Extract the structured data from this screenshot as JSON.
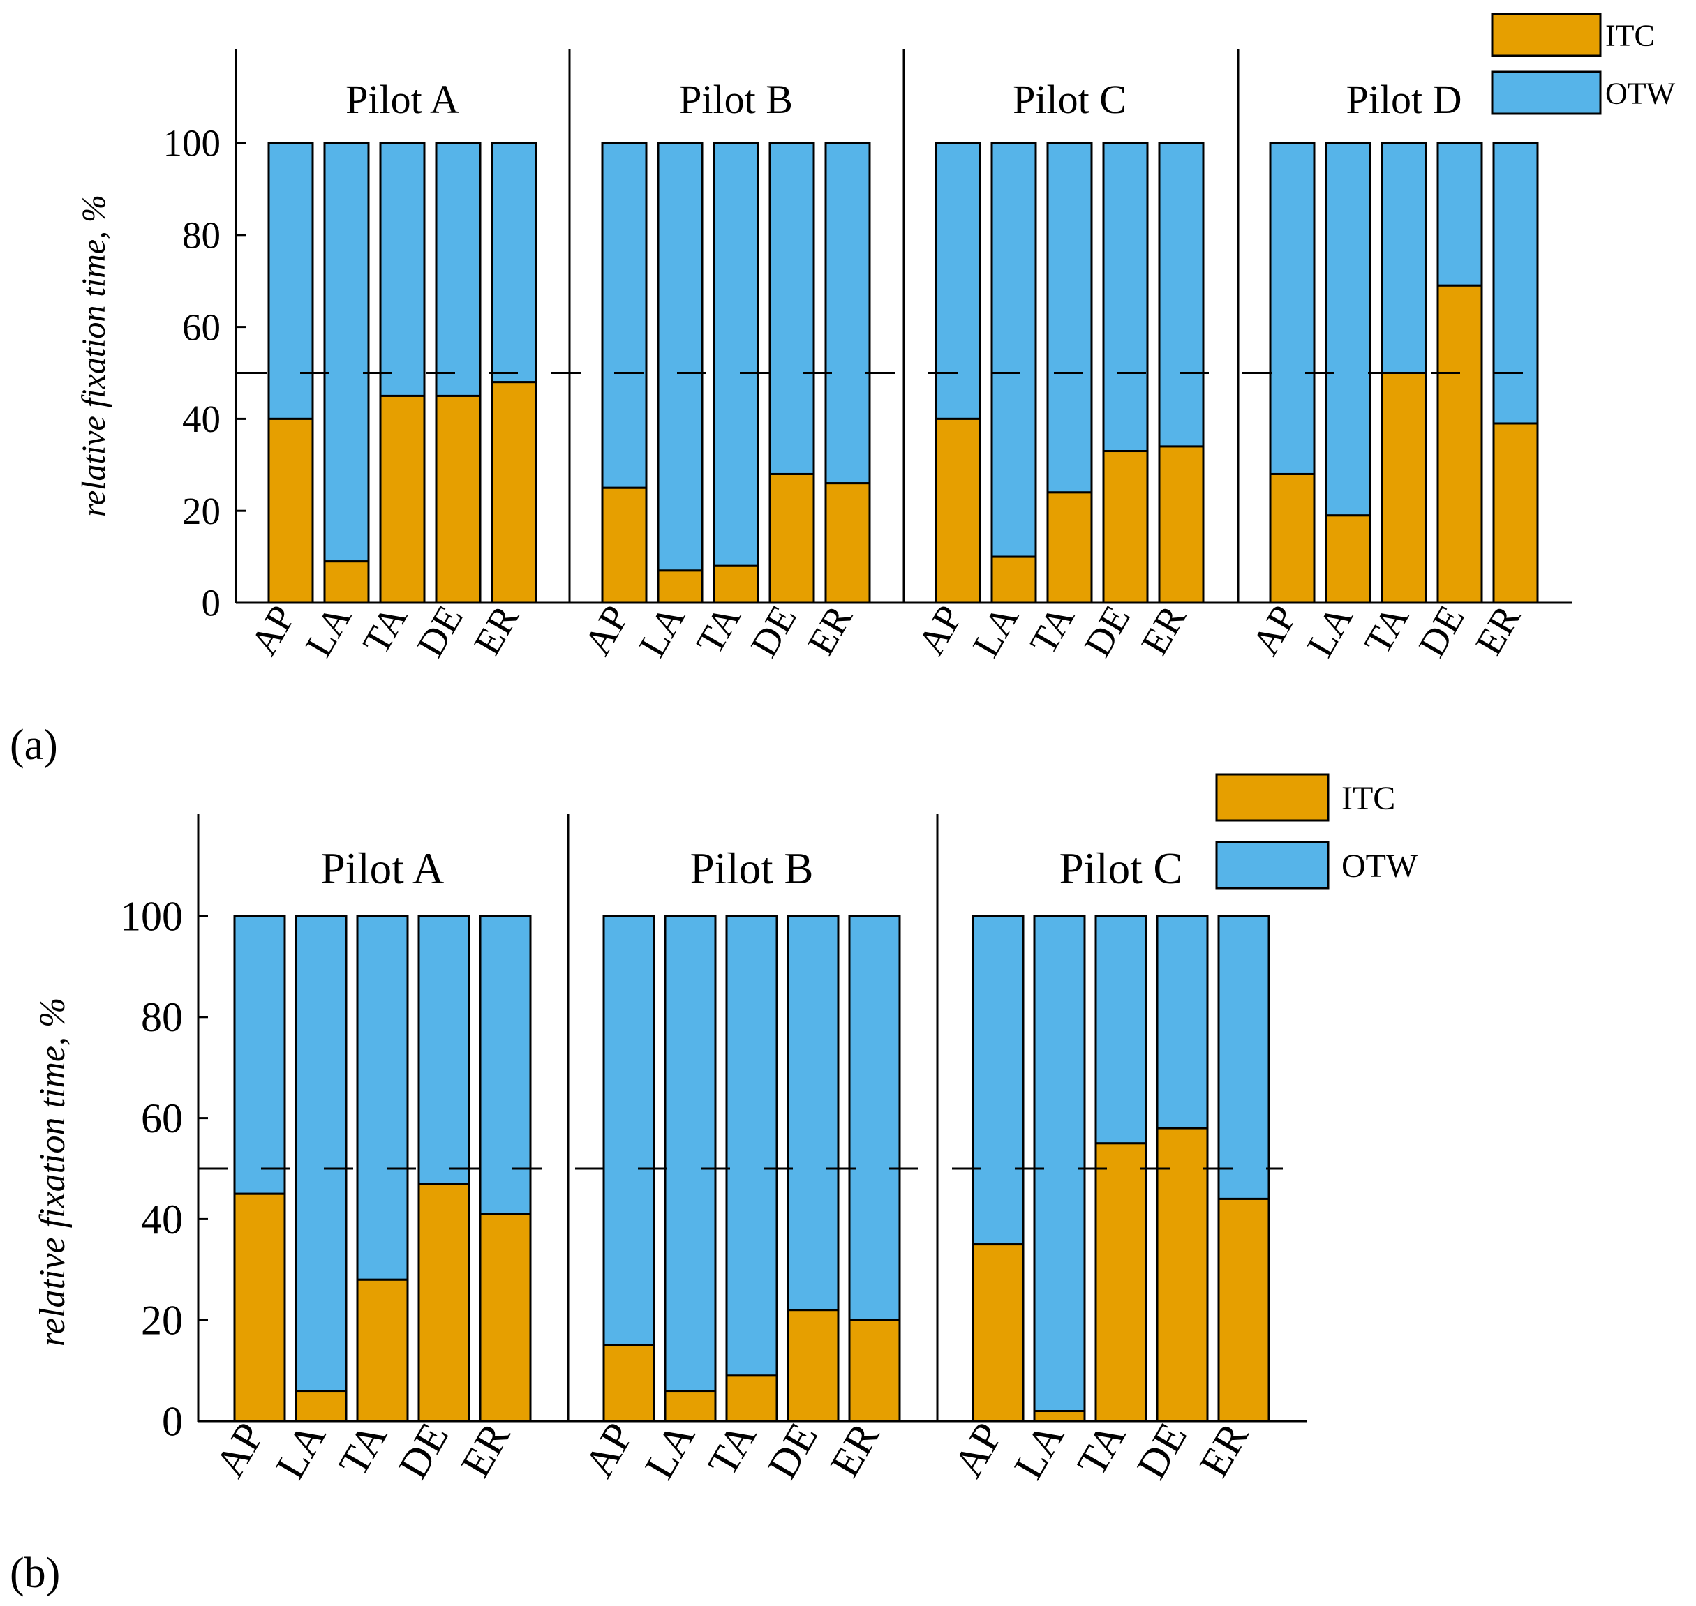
{
  "legend": {
    "itc_label": "ITC",
    "otw_label": "OTW"
  },
  "colors": {
    "itc": "#E69F00",
    "otw": "#56B4E9",
    "stroke": "#000000"
  },
  "panels": [
    {
      "tag": "(a)"
    },
    {
      "tag": "(b)"
    }
  ],
  "chart_data": [
    {
      "type": "bar",
      "stacked": true,
      "ylabel": "relative fixation time, %",
      "ylim": [
        0,
        120
      ],
      "yticks": [
        "0",
        "20",
        "40",
        "60",
        "80",
        "100"
      ],
      "reference_line": 50,
      "categories": [
        "AP",
        "LA",
        "TA",
        "DE",
        "ER"
      ],
      "groups": [
        {
          "name": "Pilot A",
          "itc": [
            40,
            9,
            45,
            45,
            48
          ],
          "otw": [
            60,
            91,
            55,
            55,
            52
          ]
        },
        {
          "name": "Pilot B",
          "itc": [
            25,
            7,
            8,
            28,
            26
          ],
          "otw": [
            75,
            93,
            92,
            72,
            74
          ]
        },
        {
          "name": "Pilot C",
          "itc": [
            40,
            10,
            24,
            33,
            34
          ],
          "otw": [
            60,
            90,
            76,
            67,
            66
          ]
        },
        {
          "name": "Pilot D",
          "itc": [
            28,
            19,
            50,
            69,
            39
          ],
          "otw": [
            72,
            81,
            50,
            31,
            61
          ]
        }
      ],
      "series": [
        {
          "name": "ITC"
        },
        {
          "name": "OTW"
        }
      ],
      "legend_position": "top-right"
    },
    {
      "type": "bar",
      "stacked": true,
      "ylabel": "relative fixation time, %",
      "ylim": [
        0,
        120
      ],
      "yticks": [
        "0",
        "20",
        "40",
        "60",
        "80",
        "100"
      ],
      "reference_line": 50,
      "categories": [
        "AP",
        "LA",
        "TA",
        "DE",
        "ER"
      ],
      "groups": [
        {
          "name": "Pilot A",
          "itc": [
            45,
            6,
            28,
            47,
            41
          ],
          "otw": [
            55,
            94,
            72,
            53,
            59
          ]
        },
        {
          "name": "Pilot B",
          "itc": [
            15,
            6,
            9,
            22,
            20
          ],
          "otw": [
            85,
            94,
            91,
            78,
            80
          ]
        },
        {
          "name": "Pilot C",
          "itc": [
            35,
            2,
            55,
            58,
            44
          ],
          "otw": [
            65,
            98,
            45,
            42,
            56
          ]
        }
      ],
      "series": [
        {
          "name": "ITC"
        },
        {
          "name": "OTW"
        }
      ],
      "legend_position": "top-right"
    }
  ]
}
